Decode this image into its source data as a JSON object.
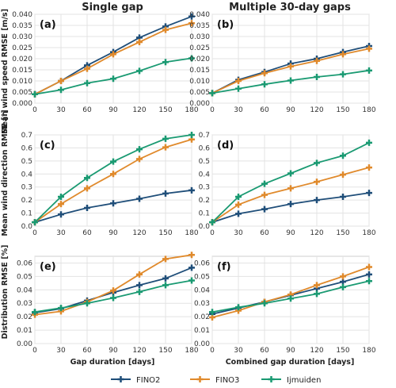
{
  "column_titles": [
    "Single gap",
    "Multiple 30-day gaps"
  ],
  "xlabels": [
    "Gap duration [days]",
    "Combined gap duration [days]"
  ],
  "ylabels": [
    "Mean wind speed RMSE [m/s]",
    "Mean wind direction RMSE [°]",
    "Distribution RMSE [%]"
  ],
  "colors": {
    "FINO2": "#1f4e79",
    "FINO3": "#e08a2c",
    "Ijmuiden": "#1a9a72"
  },
  "chart_data": [
    {
      "type": "line",
      "panel_label": "(a)",
      "x": [
        0,
        30,
        60,
        90,
        120,
        150,
        180
      ],
      "xlim": [
        0,
        180
      ],
      "ylim": [
        0,
        0.04
      ],
      "yticks": [
        "0.000",
        "0.005",
        "0.010",
        "0.015",
        "0.020",
        "0.025",
        "0.030",
        "0.035",
        "0.040"
      ],
      "ytick_values": [
        0,
        0.005,
        0.01,
        0.015,
        0.02,
        0.025,
        0.03,
        0.035,
        0.04
      ],
      "series": [
        {
          "name": "FINO2",
          "values": [
            0.004,
            0.01,
            0.017,
            0.023,
            0.0295,
            0.0345,
            0.039
          ]
        },
        {
          "name": "FINO3",
          "values": [
            0.004,
            0.01,
            0.0155,
            0.022,
            0.0275,
            0.033,
            0.036
          ]
        },
        {
          "name": "Ijmuiden",
          "values": [
            0.004,
            0.006,
            0.009,
            0.011,
            0.0145,
            0.0185,
            0.0202
          ]
        }
      ]
    },
    {
      "type": "line",
      "panel_label": "(b)",
      "x": [
        0,
        30,
        60,
        90,
        120,
        150,
        180
      ],
      "xlim": [
        0,
        180
      ],
      "ylim": [
        0,
        0.04
      ],
      "yticks": [
        "0.000",
        "0.005",
        "0.010",
        "0.015",
        "0.020",
        "0.025",
        "0.030",
        "0.035",
        "0.040"
      ],
      "ytick_values": [
        0,
        0.005,
        0.01,
        0.015,
        0.02,
        0.025,
        0.03,
        0.035,
        0.04
      ],
      "series": [
        {
          "name": "FINO2",
          "values": [
            0.0045,
            0.0105,
            0.014,
            0.0178,
            0.02,
            0.023,
            0.0257
          ]
        },
        {
          "name": "FINO3",
          "values": [
            0.0045,
            0.01,
            0.0135,
            0.0165,
            0.019,
            0.022,
            0.0245
          ]
        },
        {
          "name": "Ijmuiden",
          "values": [
            0.0045,
            0.0065,
            0.0085,
            0.0102,
            0.0118,
            0.013,
            0.0147
          ]
        }
      ]
    },
    {
      "type": "line",
      "panel_label": "(c)",
      "x": [
        0,
        30,
        60,
        90,
        120,
        150,
        180
      ],
      "xlim": [
        0,
        180
      ],
      "ylim": [
        0,
        0.7
      ],
      "yticks": [
        "0.0",
        "0.1",
        "0.2",
        "0.3",
        "0.4",
        "0.5",
        "0.6",
        "0.7"
      ],
      "ytick_values": [
        0,
        0.1,
        0.2,
        0.3,
        0.4,
        0.5,
        0.6,
        0.7
      ],
      "series": [
        {
          "name": "FINO2",
          "values": [
            0.03,
            0.09,
            0.14,
            0.175,
            0.21,
            0.25,
            0.275
          ]
        },
        {
          "name": "FINO3",
          "values": [
            0.03,
            0.17,
            0.29,
            0.4,
            0.515,
            0.605,
            0.665
          ]
        },
        {
          "name": "Ijmuiden",
          "values": [
            0.03,
            0.225,
            0.37,
            0.495,
            0.59,
            0.67,
            0.7
          ]
        }
      ]
    },
    {
      "type": "line",
      "panel_label": "(d)",
      "x": [
        0,
        30,
        60,
        90,
        120,
        150,
        180
      ],
      "xlim": [
        0,
        180
      ],
      "ylim": [
        0,
        0.7
      ],
      "yticks": [
        "0.0",
        "0.1",
        "0.2",
        "0.3",
        "0.4",
        "0.5",
        "0.6",
        "0.7"
      ],
      "ytick_values": [
        0,
        0.1,
        0.2,
        0.3,
        0.4,
        0.5,
        0.6,
        0.7
      ],
      "series": [
        {
          "name": "FINO2",
          "values": [
            0.03,
            0.095,
            0.13,
            0.17,
            0.2,
            0.225,
            0.255
          ]
        },
        {
          "name": "FINO3",
          "values": [
            0.03,
            0.165,
            0.24,
            0.29,
            0.34,
            0.395,
            0.45
          ]
        },
        {
          "name": "Ijmuiden",
          "values": [
            0.03,
            0.225,
            0.325,
            0.405,
            0.485,
            0.54,
            0.64
          ]
        }
      ]
    },
    {
      "type": "line",
      "panel_label": "(e)",
      "x": [
        0,
        30,
        60,
        90,
        120,
        150,
        180
      ],
      "xlim": [
        0,
        180
      ],
      "ylim": [
        0,
        0.065
      ],
      "yticks": [
        "0.00",
        "0.01",
        "0.02",
        "0.03",
        "0.04",
        "0.05",
        "0.06"
      ],
      "ytick_values": [
        0,
        0.01,
        0.02,
        0.03,
        0.04,
        0.05,
        0.06
      ],
      "series": [
        {
          "name": "FINO2",
          "values": [
            0.023,
            0.026,
            0.032,
            0.038,
            0.0435,
            0.0485,
            0.0565
          ]
        },
        {
          "name": "FINO3",
          "values": [
            0.0215,
            0.024,
            0.031,
            0.0395,
            0.0515,
            0.063,
            0.066
          ]
        },
        {
          "name": "Ijmuiden",
          "values": [
            0.0235,
            0.0265,
            0.03,
            0.034,
            0.0385,
            0.0435,
            0.047
          ]
        }
      ]
    },
    {
      "type": "line",
      "panel_label": "(f)",
      "x": [
        0,
        30,
        60,
        90,
        120,
        150,
        180
      ],
      "xlim": [
        0,
        180
      ],
      "ylim": [
        0,
        0.065
      ],
      "yticks": [
        "0.00",
        "0.01",
        "0.02",
        "0.03",
        "0.04",
        "0.05",
        "0.06"
      ],
      "ytick_values": [
        0,
        0.01,
        0.02,
        0.03,
        0.04,
        0.05,
        0.06
      ],
      "series": [
        {
          "name": "FINO2",
          "values": [
            0.022,
            0.0265,
            0.031,
            0.036,
            0.041,
            0.046,
            0.0515
          ]
        },
        {
          "name": "FINO3",
          "values": [
            0.0195,
            0.0245,
            0.031,
            0.0365,
            0.0435,
            0.05,
            0.057
          ]
        },
        {
          "name": "Ijmuiden",
          "values": [
            0.0235,
            0.027,
            0.03,
            0.0335,
            0.037,
            0.042,
            0.0465
          ]
        }
      ]
    }
  ],
  "xticks": [
    "0",
    "30",
    "60",
    "90",
    "120",
    "150",
    "180"
  ],
  "legend": [
    "FINO2",
    "FINO3",
    "Ijmuiden"
  ]
}
